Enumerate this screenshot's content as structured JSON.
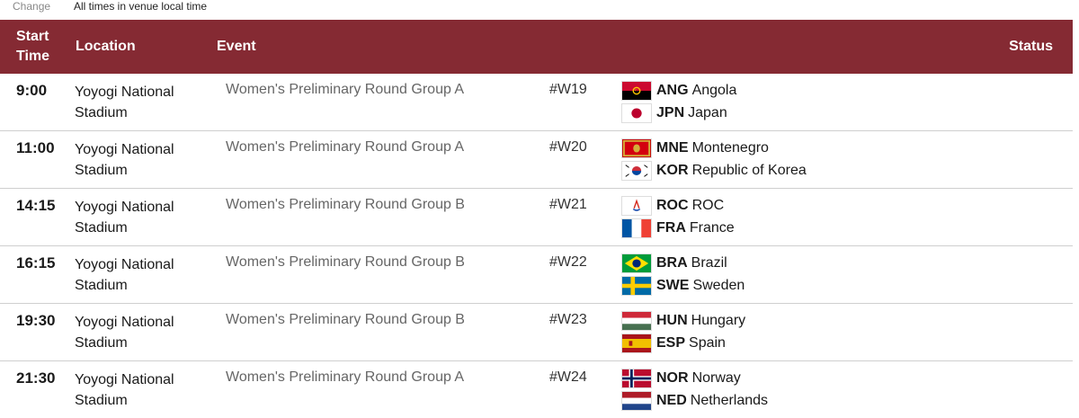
{
  "topbar": {
    "change_label": "Change",
    "note": "All times in venue local time"
  },
  "header": {
    "start_time": "Start Time",
    "location": "Location",
    "event": "Event",
    "status": "Status"
  },
  "rows": [
    {
      "time": "9:00",
      "location": "Yoyogi National Stadium",
      "event": "Women's Preliminary Round Group A",
      "match": "#W19",
      "team1": {
        "code": "ANG",
        "name": "Angola",
        "flag": "angola-flag-icon"
      },
      "team2": {
        "code": "JPN",
        "name": "Japan",
        "flag": "japan-flag-icon"
      }
    },
    {
      "time": "11:00",
      "location": "Yoyogi National Stadium",
      "event": "Women's Preliminary Round Group A",
      "match": "#W20",
      "team1": {
        "code": "MNE",
        "name": "Montenegro",
        "flag": "montenegro-flag-icon"
      },
      "team2": {
        "code": "KOR",
        "name": "Republic of Korea",
        "flag": "korea-flag-icon"
      }
    },
    {
      "time": "14:15",
      "location": "Yoyogi National Stadium",
      "event": "Women's Preliminary Round Group B",
      "match": "#W21",
      "team1": {
        "code": "ROC",
        "name": "ROC",
        "flag": "roc-flag-icon"
      },
      "team2": {
        "code": "FRA",
        "name": "France",
        "flag": "france-flag-icon"
      }
    },
    {
      "time": "16:15",
      "location": "Yoyogi National Stadium",
      "event": "Women's Preliminary Round Group B",
      "match": "#W22",
      "team1": {
        "code": "BRA",
        "name": "Brazil",
        "flag": "brazil-flag-icon"
      },
      "team2": {
        "code": "SWE",
        "name": "Sweden",
        "flag": "sweden-flag-icon"
      }
    },
    {
      "time": "19:30",
      "location": "Yoyogi National Stadium",
      "event": "Women's Preliminary Round Group B",
      "match": "#W23",
      "team1": {
        "code": "HUN",
        "name": "Hungary",
        "flag": "hungary-flag-icon"
      },
      "team2": {
        "code": "ESP",
        "name": "Spain",
        "flag": "spain-flag-icon"
      }
    },
    {
      "time": "21:30",
      "location": "Yoyogi National Stadium",
      "event": "Women's Preliminary Round Group A",
      "match": "#W24",
      "team1": {
        "code": "NOR",
        "name": "Norway",
        "flag": "norway-flag-icon"
      },
      "team2": {
        "code": "NED",
        "name": "Netherlands",
        "flag": "netherlands-flag-icon"
      }
    }
  ],
  "colors": {
    "header_bg": "#852a33",
    "event_text": "#666666"
  }
}
